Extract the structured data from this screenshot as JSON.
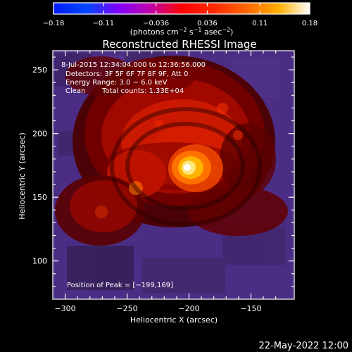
{
  "chart_data": {
    "type": "heatmap",
    "title": "Reconstructed RHESSI Image",
    "xlabel": "Heliocentric X (arcsec)",
    "ylabel": "Heliocentric Y (arcsec)",
    "xlim": [
      -310,
      -115
    ],
    "ylim": [
      70,
      265
    ],
    "x_ticks": [
      -300,
      -250,
      -200,
      -150
    ],
    "y_ticks": [
      100,
      150,
      200,
      250
    ],
    "x_tick_labels": [
      "−300",
      "−250",
      "−200",
      "−150"
    ],
    "y_tick_labels": [
      "100",
      "150",
      "200",
      "250"
    ],
    "colorbar": {
      "range": [
        -0.18,
        0.18
      ],
      "ticks": [
        -0.18,
        -0.11,
        -0.036,
        0.036,
        0.11,
        0.18
      ],
      "tick_labels": [
        "−0.18",
        "−0.11",
        "−0.036",
        "0.036",
        "0.11",
        "0.18"
      ],
      "unit_prefix": "(photons cm",
      "unit_exp1": "−2",
      "unit_mid": " s",
      "unit_exp2": "−1",
      "unit_mid2": " asec",
      "unit_exp3": "−2",
      "unit_suffix": ")"
    },
    "annotations": {
      "time_range": "8‑Jul‑2015 12:34:04.000 to 12:36:56.000",
      "detectors": "Detectors: 3F 5F 6F 7F 8F 9F, Att 0",
      "energy_range": "Energy Range: 3.0 − 6.0 keV",
      "clean_label": "Clean",
      "total_counts": "Total counts: 1.33E+04",
      "peak_position": "Position of Peak = [−199,169]"
    },
    "peak": {
      "x": -199,
      "y": 169,
      "value": 0.18
    },
    "secondary_peak": {
      "x": -243,
      "y": 153,
      "value": 0.08
    },
    "grid": false,
    "legend": "none"
  },
  "footer": {
    "timestamp": "22‑May‑2022 12:00"
  },
  "colors": {
    "background": "#000000",
    "text": "#ffffff",
    "negative_floor": "#4a2f86",
    "positive_low": "#7a0000",
    "positive_mid": "#ff3300",
    "positive_high": "#ffb000",
    "peak": "#ffffff"
  }
}
